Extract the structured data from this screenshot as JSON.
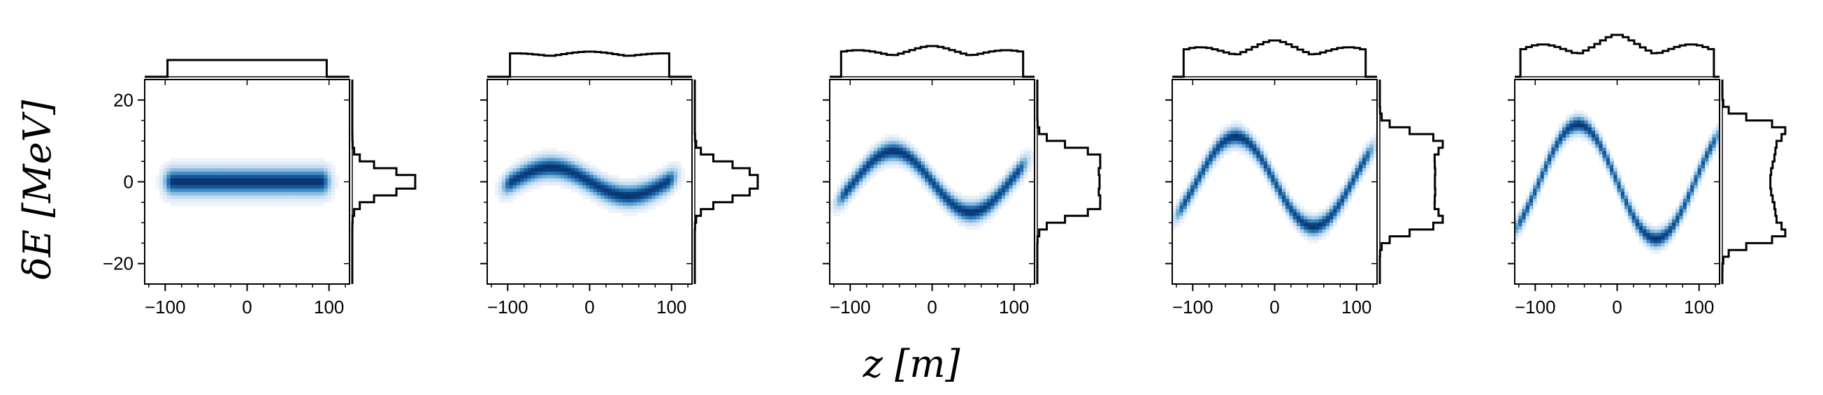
{
  "figure": {
    "xlabel": "z [m]",
    "ylabel": "δE [MeV]",
    "colors": {
      "density": "#08306b",
      "hist": "#000000",
      "axes": "#000000"
    }
  },
  "chart_data": [
    {
      "type": "heatmap",
      "panel": 1,
      "xlim": [
        -125,
        125
      ],
      "ylim": [
        -25,
        25
      ],
      "xticks": [
        -100,
        0,
        100
      ],
      "yticks": [
        -20,
        0,
        20
      ],
      "distribution": {
        "z_range": [
          -90,
          90
        ],
        "chirp_amplitude": 0,
        "chirp_wavelength": 190,
        "energy_spread": 2.2
      },
      "z_histogram": {
        "shape": "flat-top",
        "range": [
          -90,
          90
        ]
      },
      "deltaE_histogram": {
        "shape": "single-peak",
        "peaks": [
          0
        ]
      }
    },
    {
      "type": "heatmap",
      "panel": 2,
      "xlim": [
        -125,
        125
      ],
      "ylim": [
        -25,
        25
      ],
      "xticks": [
        -100,
        0,
        100
      ],
      "yticks": [],
      "distribution": {
        "z_range": [
          -95,
          95
        ],
        "chirp_amplitude": 3.5,
        "chirp_wavelength": 190,
        "energy_spread": 1.8
      },
      "z_histogram": {
        "shape": "flat-top",
        "range": [
          -95,
          95
        ]
      },
      "deltaE_histogram": {
        "shape": "double-peak",
        "peaks": [
          -3.5,
          3.5
        ]
      }
    },
    {
      "type": "heatmap",
      "panel": 3,
      "xlim": [
        -125,
        125
      ],
      "ylim": [
        -25,
        25
      ],
      "xticks": [
        -100,
        0,
        100
      ],
      "yticks": [],
      "distribution": {
        "z_range": [
          -105,
          105
        ],
        "chirp_amplitude": 7.5,
        "chirp_wavelength": 190,
        "energy_spread": 1.6
      },
      "z_histogram": {
        "shape": "broad-bump",
        "peaks": [
          0
        ]
      },
      "deltaE_histogram": {
        "shape": "double-peak",
        "peaks": [
          -7,
          7
        ]
      }
    },
    {
      "type": "heatmap",
      "panel": 4,
      "xlim": [
        -125,
        125
      ],
      "ylim": [
        -25,
        25
      ],
      "xticks": [
        -100,
        0,
        100
      ],
      "yticks": [],
      "distribution": {
        "z_range": [
          -110,
          110
        ],
        "chirp_amplitude": 11,
        "chirp_wavelength": 190,
        "energy_spread": 1.5
      },
      "z_histogram": {
        "shape": "cusp",
        "peaks": [
          0
        ]
      },
      "deltaE_histogram": {
        "shape": "double-peak",
        "peaks": [
          -10,
          10
        ]
      }
    },
    {
      "type": "heatmap",
      "panel": 5,
      "xlim": [
        -125,
        125
      ],
      "ylim": [
        -25,
        25
      ],
      "xticks": [
        -100,
        0,
        100
      ],
      "yticks": [],
      "distribution": {
        "z_range": [
          -115,
          115
        ],
        "chirp_amplitude": 14,
        "chirp_wavelength": 190,
        "energy_spread": 1.4
      },
      "z_histogram": {
        "shape": "sharp-spike",
        "peaks": [
          0
        ]
      },
      "deltaE_histogram": {
        "shape": "double-peak",
        "peaks": [
          -13,
          13
        ]
      }
    }
  ]
}
